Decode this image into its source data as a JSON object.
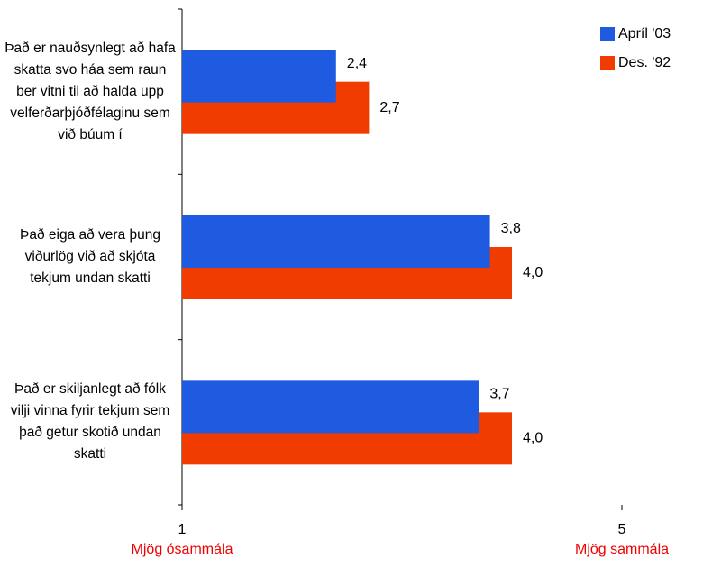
{
  "chart_data": {
    "type": "hbar",
    "categories": [
      "Það er nauðsynlegt að hafa skatta svo háa sem raun ber vitni til að halda upp velferðarþjóðfélaginu sem við búum í",
      "Það eiga að vera þung viðurlög við að skjóta tekjum undan skatti",
      "Það er skiljanlegt að fólk vilji vinna fyrir tekjum sem það getur skotið undan skatti"
    ],
    "series": [
      {
        "name": "Apríl '03",
        "color": "#1f5be0",
        "values": [
          2.4,
          3.8,
          3.7
        ],
        "value_labels": [
          "2,4",
          "3,8",
          "3,7"
        ]
      },
      {
        "name": "Des. '92",
        "color": "#f03c00",
        "values": [
          2.7,
          4.0,
          4.0
        ],
        "value_labels": [
          "2,7",
          "4,0",
          "4,0"
        ]
      }
    ],
    "xlim": [
      1,
      5
    ],
    "xticks": [
      1,
      5
    ],
    "annotations": [
      "Mjög ósammála",
      "Mjög sammála"
    ],
    "legend": "top-right"
  }
}
